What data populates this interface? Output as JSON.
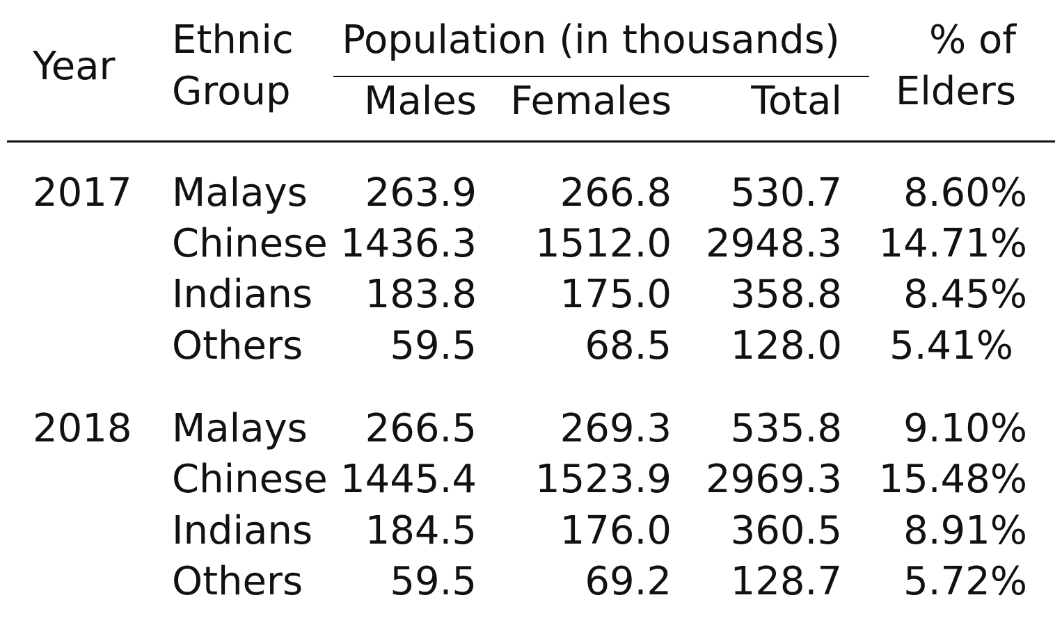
{
  "header": {
    "year": "Year",
    "ethnic_line1": "Ethnic",
    "ethnic_line2": "Group",
    "population": "Population (in thousands)",
    "males": "Males",
    "females": "Females",
    "total": "Total",
    "elders_line1": "% of",
    "elders_line2": "Elders"
  },
  "groups": [
    {
      "year": "2017",
      "rows": [
        {
          "group": "Malays",
          "males": "263.9",
          "females": "266.8",
          "total": "530.7",
          "elders": "8.60%"
        },
        {
          "group": "Chinese",
          "males": "1436.3",
          "females": "1512.0",
          "total": "2948.3",
          "elders": "14.71%"
        },
        {
          "group": "Indians",
          "males": "183.8",
          "females": "175.0",
          "total": "358.8",
          "elders": "8.45%"
        },
        {
          "group": "Others",
          "males": "59.5",
          "females": "68.5",
          "total": "128.0",
          "elders": "5.41%"
        }
      ]
    },
    {
      "year": "2018",
      "rows": [
        {
          "group": "Malays",
          "males": "266.5",
          "females": "269.3",
          "total": "535.8",
          "elders": "9.10%"
        },
        {
          "group": "Chinese",
          "males": "1445.4",
          "females": "1523.9",
          "total": "2969.3",
          "elders": "15.48%"
        },
        {
          "group": "Indians",
          "males": "184.5",
          "females": "176.0",
          "total": "360.5",
          "elders": "8.91%"
        },
        {
          "group": "Others",
          "males": "59.5",
          "females": "69.2",
          "total": "128.7",
          "elders": "5.72%"
        }
      ]
    }
  ]
}
